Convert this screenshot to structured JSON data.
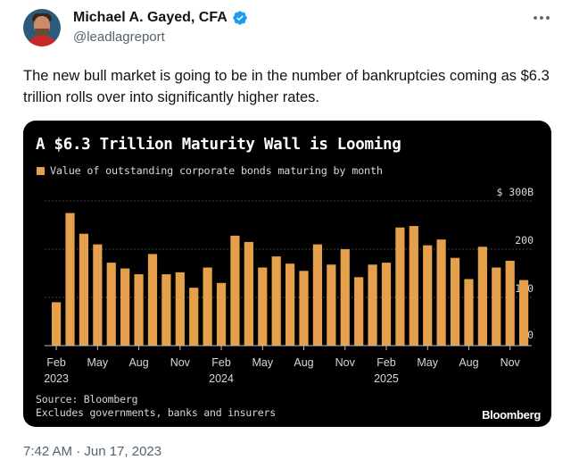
{
  "author": {
    "name": "Michael A. Gayed, CFA",
    "handle": "@leadlagreport",
    "verified_icon": "verified-badge-icon",
    "verified_color": "#1d9bf0"
  },
  "tweet": {
    "text": "The new bull market is going to be in the number of bankruptcies coming as $6.3 trillion rolls over into significantly higher rates.",
    "timestamp": "7:42 AM · Jun 17, 2023"
  },
  "more_icon": "more-options-icon",
  "chart_data": {
    "type": "bar",
    "title": "A $6.3 Trillion Maturity Wall is Looming",
    "legend": "Value of outstanding corporate bonds maturing by month",
    "bar_color": "#e5a04b",
    "ylim": [
      0,
      300
    ],
    "y_ticks": [
      {
        "value": 0,
        "label": "0"
      },
      {
        "value": 100,
        "label": "100"
      },
      {
        "value": 200,
        "label": "200"
      },
      {
        "value": 300,
        "label": "$ 300B"
      }
    ],
    "x_ticks": [
      {
        "index": 0,
        "label": "Feb",
        "year": "2023"
      },
      {
        "index": 3,
        "label": "May"
      },
      {
        "index": 6,
        "label": "Aug"
      },
      {
        "index": 9,
        "label": "Nov"
      },
      {
        "index": 12,
        "label": "Feb",
        "year": "2024"
      },
      {
        "index": 15,
        "label": "May"
      },
      {
        "index": 18,
        "label": "Aug"
      },
      {
        "index": 21,
        "label": "Nov"
      },
      {
        "index": 24,
        "label": "Feb",
        "year": "2025"
      },
      {
        "index": 27,
        "label": "May"
      },
      {
        "index": 30,
        "label": "Aug"
      },
      {
        "index": 33,
        "label": "Nov"
      }
    ],
    "values": [
      90,
      275,
      232,
      210,
      172,
      160,
      148,
      190,
      148,
      152,
      120,
      162,
      130,
      228,
      215,
      162,
      185,
      170,
      155,
      210,
      168,
      200,
      142,
      168,
      172,
      245,
      248,
      208,
      220,
      182,
      138,
      205,
      162,
      176,
      136
    ]
  },
  "source": "Source: Bloomberg",
  "note": "Excludes governments, banks and insurers",
  "brand": "Bloomberg"
}
